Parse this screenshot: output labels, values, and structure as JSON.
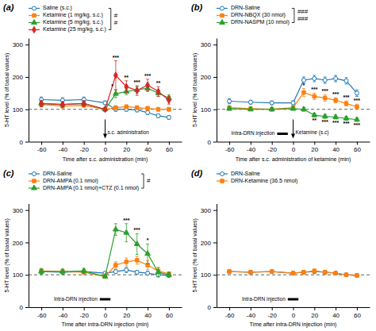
{
  "chart_data": [
    {
      "type": "line",
      "title": "(a)",
      "xlabel": "Time after s.c. administration (min)",
      "ylabel": "5-HT level (% of basal values)",
      "x": [
        -60,
        -40,
        -20,
        0,
        10,
        20,
        30,
        40,
        50,
        60
      ],
      "series": [
        {
          "name": "Saline (s.c.)",
          "marker": "open-circle",
          "values": [
            130,
            128,
            130,
            120,
            100,
            100,
            98,
            90,
            80,
            75
          ],
          "errors": [
            8,
            8,
            8,
            6,
            6,
            6,
            6,
            6,
            6,
            6
          ]
        },
        {
          "name": "Ketamine (1 mg/kg, s.c.)",
          "marker": "square",
          "values": [
            115,
            110,
            112,
            100,
            105,
            108,
            105,
            103,
            100,
            100
          ],
          "errors": [
            8,
            6,
            6,
            5,
            6,
            6,
            6,
            6,
            6,
            6
          ]
        },
        {
          "name": "Ketamine (5 mg/kg, s.c.)",
          "marker": "triangle",
          "values": [
            118,
            115,
            118,
            100,
            148,
            155,
            160,
            165,
            150,
            135
          ],
          "errors": [
            8,
            8,
            8,
            5,
            12,
            10,
            10,
            10,
            10,
            10
          ],
          "significance": [
            null,
            null,
            null,
            null,
            "*",
            null,
            null,
            null,
            null,
            null
          ]
        },
        {
          "name": "Ketamine (25 mg/kg, s.c.)",
          "marker": "diamond",
          "values": [
            118,
            115,
            118,
            100,
            205,
            170,
            158,
            175,
            155,
            128
          ],
          "errors": [
            10,
            8,
            8,
            5,
            45,
            18,
            15,
            18,
            15,
            12
          ],
          "significance": [
            null,
            null,
            null,
            null,
            "***",
            "**",
            "***",
            "***",
            "**",
            null
          ]
        }
      ],
      "xlim": [
        -72,
        72
      ],
      "xticks": [
        -60,
        -40,
        -20,
        0,
        20,
        40,
        60
      ],
      "ylim": [
        0,
        320
      ],
      "yticks": [
        0,
        100,
        200,
        300
      ],
      "reference_line": 100,
      "grid": false,
      "legend": "top",
      "events": [
        {
          "type": "arrow",
          "x": 0,
          "text": "s.c. administration"
        }
      ],
      "annotations": [
        "#",
        "#"
      ]
    },
    {
      "type": "line",
      "title": "(b)",
      "xlabel": "Time after s.c. administration of ketamine (min)",
      "ylabel": "5-HT level (% of basal values)",
      "x": [
        -60,
        -40,
        -20,
        0,
        10,
        20,
        30,
        40,
        50,
        60
      ],
      "series": [
        {
          "name": "DRN-Saline",
          "marker": "open-circle",
          "values": [
            125,
            122,
            120,
            120,
            190,
            195,
            190,
            195,
            188,
            150
          ],
          "errors": [
            8,
            6,
            6,
            6,
            10,
            10,
            10,
            10,
            10,
            10
          ]
        },
        {
          "name": "DRN-NBQX (30 nmol)",
          "marker": "square",
          "values": [
            105,
            102,
            100,
            105,
            152,
            140,
            135,
            128,
            118,
            108
          ],
          "errors": [
            6,
            5,
            5,
            5,
            12,
            10,
            10,
            8,
            8,
            8
          ],
          "significance": [
            null,
            null,
            null,
            null,
            "*",
            "***",
            "***",
            "***",
            "***",
            "***"
          ]
        },
        {
          "name": "DRN-NASPM (10 nmol)",
          "marker": "triangle",
          "values": [
            102,
            100,
            100,
            102,
            100,
            82,
            78,
            76,
            72,
            68
          ],
          "errors": [
            5,
            5,
            5,
            5,
            6,
            6,
            6,
            6,
            6,
            5
          ],
          "significance": [
            null,
            null,
            null,
            null,
            null,
            "**",
            "***",
            "***",
            "***",
            "***"
          ]
        }
      ],
      "xlim": [
        -72,
        72
      ],
      "xticks": [
        -60,
        -40,
        -20,
        0,
        20,
        40,
        60
      ],
      "ylim": [
        0,
        320
      ],
      "yticks": [
        0,
        100,
        200,
        300
      ],
      "reference_line": 100,
      "grid": false,
      "legend": "top",
      "events": [
        {
          "type": "bar",
          "x": [
            -15,
            -5
          ],
          "text": "Intra-DRN injection"
        },
        {
          "type": "arrow",
          "x": 0,
          "text": "Ketamine (s.c)"
        }
      ],
      "annotations": [
        "###",
        "###"
      ]
    },
    {
      "type": "line",
      "title": "(c)",
      "xlabel": "Time after intra-DRN injection (min)",
      "ylabel": "5-HT level (% of basal values)",
      "x": [
        -60,
        -40,
        -20,
        0,
        10,
        20,
        30,
        40,
        50,
        60
      ],
      "series": [
        {
          "name": "DRN-Saline",
          "marker": "open-circle",
          "values": [
            110,
            108,
            110,
            105,
            110,
            115,
            108,
            105,
            100,
            98
          ],
          "errors": [
            6,
            6,
            6,
            5,
            6,
            8,
            6,
            6,
            5,
            5
          ]
        },
        {
          "name": "DRN-AMPA (0.1 nmol)",
          "marker": "square",
          "values": [
            112,
            110,
            108,
            95,
            130,
            140,
            145,
            130,
            112,
            103
          ],
          "errors": [
            8,
            6,
            6,
            5,
            10,
            12,
            12,
            14,
            8,
            6
          ]
        },
        {
          "name": "DRN-AMPA (0.1 nmol)+CTZ (0.1 nmol)",
          "marker": "triangle",
          "values": [
            110,
            110,
            112,
            95,
            240,
            230,
            195,
            165,
            108,
            100
          ],
          "errors": [
            8,
            8,
            8,
            5,
            18,
            28,
            32,
            30,
            15,
            6
          ],
          "significance": [
            null,
            null,
            null,
            null,
            null,
            "***",
            "***",
            "*",
            null,
            null
          ]
        }
      ],
      "xlim": [
        -72,
        72
      ],
      "xticks": [
        -60,
        -40,
        -20,
        0,
        20,
        40,
        60
      ],
      "ylim": [
        0,
        320
      ],
      "yticks": [
        0,
        100,
        200,
        300
      ],
      "reference_line": 100,
      "grid": false,
      "legend": "top",
      "events": [
        {
          "type": "bar",
          "x": [
            -5,
            5
          ],
          "text": "Intra-DRN injection"
        }
      ],
      "annotations": [
        "#"
      ]
    },
    {
      "type": "line",
      "title": "(d)",
      "xlabel": "Time after intra-DRN injection (min)",
      "ylabel": "5-HT level (% of basal values)",
      "x": [
        -60,
        -40,
        -20,
        0,
        10,
        20,
        30,
        40,
        50,
        60
      ],
      "series": [
        {
          "name": "DRN-Saline",
          "marker": "open-circle",
          "values": [
            110,
            108,
            110,
            105,
            108,
            110,
            108,
            105,
            100,
            98
          ],
          "errors": [
            6,
            5,
            5,
            5,
            5,
            6,
            5,
            5,
            5,
            5
          ]
        },
        {
          "name": "DRN-Ketamine (36.5 nmol)",
          "marker": "square",
          "values": [
            110,
            108,
            110,
            105,
            108,
            112,
            108,
            105,
            100,
            98
          ],
          "errors": [
            6,
            5,
            5,
            5,
            5,
            6,
            5,
            5,
            5,
            5
          ]
        }
      ],
      "xlim": [
        -72,
        72
      ],
      "xticks": [
        -60,
        -40,
        -20,
        0,
        20,
        40,
        60
      ],
      "ylim": [
        0,
        320
      ],
      "yticks": [
        0,
        100,
        200,
        300
      ],
      "reference_line": 100,
      "grid": false,
      "legend": "top",
      "events": [
        {
          "type": "bar",
          "x": [
            -5,
            5
          ],
          "text": "Intra-DRN injection"
        }
      ]
    }
  ]
}
